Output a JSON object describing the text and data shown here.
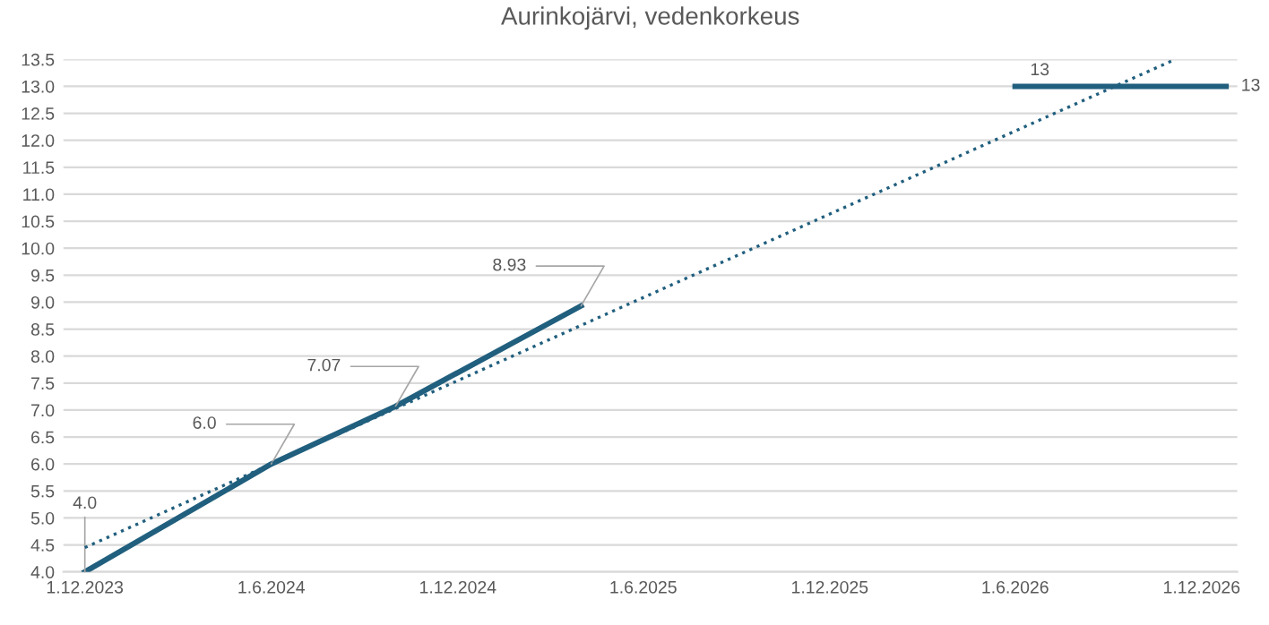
{
  "chart_data": {
    "type": "line",
    "title": "Aurinkojärvi, vedenkorkeus",
    "series": [
      {
        "color": "#215f7e",
        "x": [
          "2023-12-01",
          "2024-06-01",
          "2024-10-01",
          "2025-04-01",
          "2025-10-01",
          "2026-06-01",
          "2026-12-25"
        ],
        "values": [
          4.0,
          6.0,
          7.07,
          8.93,
          null,
          13,
          13
        ],
        "value_labels": [
          "4.0",
          "6.0",
          "7.07",
          "8.93",
          null,
          "13",
          "13"
        ],
        "line_style": "solid"
      },
      {
        "color": "#215f7e",
        "x": [
          "2023-12-01",
          "2026-11-05"
        ],
        "values": [
          4.45,
          13.5
        ],
        "line_style": "dotted"
      }
    ],
    "xlim": [
      "2023-11-10",
      "2027-01-05"
    ],
    "xticks": [
      {
        "value": "2023-12-01",
        "label": "1.12.2023"
      },
      {
        "value": "2024-06-01",
        "label": "1.6.2024"
      },
      {
        "value": "2024-12-01",
        "label": "1.12.2024"
      },
      {
        "value": "2025-06-01",
        "label": "1.6.2025"
      },
      {
        "value": "2025-12-01",
        "label": "1.12.2025"
      },
      {
        "value": "2026-06-01",
        "label": "1.6.2026"
      },
      {
        "value": "2026-12-01",
        "label": "1.12.2026"
      }
    ],
    "ylim": [
      4.0,
      13.5
    ],
    "yticks": [
      "4.0",
      "4.5",
      "5.0",
      "5.5",
      "6.0",
      "6.5",
      "7.0",
      "7.5",
      "8.0",
      "8.5",
      "9.0",
      "9.5",
      "10.0",
      "10.5",
      "11.0",
      "11.5",
      "12.0",
      "12.5",
      "13.0",
      "13.5"
    ],
    "grid": "y",
    "marker": "none",
    "legend": false
  }
}
